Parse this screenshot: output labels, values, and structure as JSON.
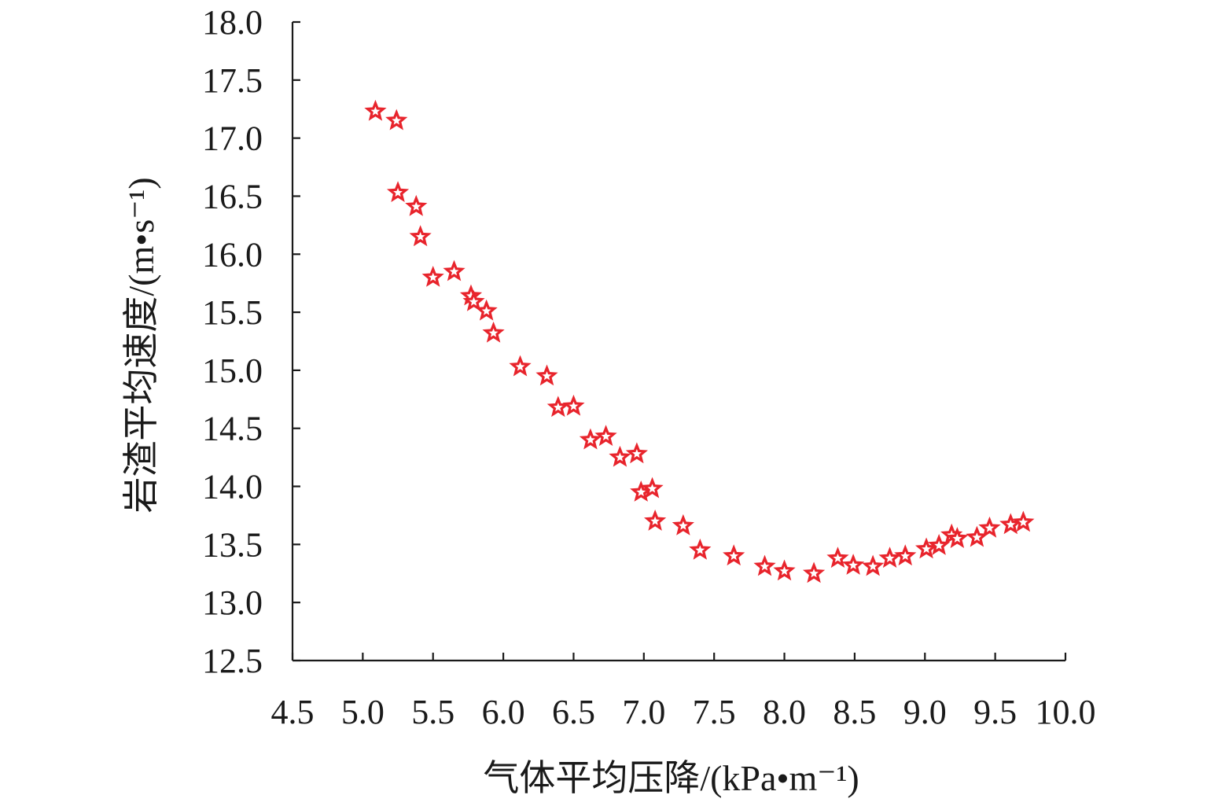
{
  "chart_data": {
    "type": "scatter",
    "title": "",
    "xlabel": "气体平均压降/(kPa•m⁻¹)",
    "ylabel": "岩渣平均速度/(m•s⁻¹)",
    "xlim": [
      4.5,
      10.0
    ],
    "ylim": [
      12.5,
      18.0
    ],
    "x_ticks": [
      "4.5",
      "5.0",
      "5.5",
      "6.0",
      "6.5",
      "7.0",
      "7.5",
      "8.0",
      "8.5",
      "9.0",
      "9.5",
      "10.0"
    ],
    "y_ticks": [
      "18.0",
      "17.5",
      "17.0",
      "16.5",
      "16.0",
      "15.5",
      "15.0",
      "14.5",
      "14.0",
      "13.5",
      "13.0",
      "12.5"
    ],
    "grid": false,
    "legend": "none",
    "marker": "star",
    "marker_color": "#e8242c",
    "series": [
      {
        "points": [
          [
            5.09,
            17.23
          ],
          [
            5.24,
            17.15
          ],
          [
            5.25,
            16.53
          ],
          [
            5.38,
            16.41
          ],
          [
            5.41,
            16.15
          ],
          [
            5.5,
            15.8
          ],
          [
            5.65,
            15.85
          ],
          [
            5.77,
            15.64
          ],
          [
            5.79,
            15.59
          ],
          [
            5.88,
            15.51
          ],
          [
            5.93,
            15.32
          ],
          [
            6.12,
            15.03
          ],
          [
            6.31,
            14.95
          ],
          [
            6.39,
            14.68
          ],
          [
            6.5,
            14.69
          ],
          [
            6.62,
            14.4
          ],
          [
            6.73,
            14.43
          ],
          [
            6.83,
            14.25
          ],
          [
            6.95,
            14.28
          ],
          [
            6.98,
            13.95
          ],
          [
            7.06,
            13.98
          ],
          [
            7.08,
            13.7
          ],
          [
            7.28,
            13.66
          ],
          [
            7.4,
            13.45
          ],
          [
            7.64,
            13.4
          ],
          [
            7.86,
            13.31
          ],
          [
            8.0,
            13.27
          ],
          [
            8.21,
            13.25
          ],
          [
            8.38,
            13.38
          ],
          [
            8.49,
            13.32
          ],
          [
            8.63,
            13.31
          ],
          [
            8.75,
            13.38
          ],
          [
            8.86,
            13.4
          ],
          [
            9.01,
            13.46
          ],
          [
            9.1,
            13.49
          ],
          [
            9.19,
            13.58
          ],
          [
            9.23,
            13.55
          ],
          [
            9.37,
            13.56
          ],
          [
            9.46,
            13.64
          ],
          [
            9.61,
            13.67
          ],
          [
            9.7,
            13.69
          ]
        ]
      }
    ]
  }
}
